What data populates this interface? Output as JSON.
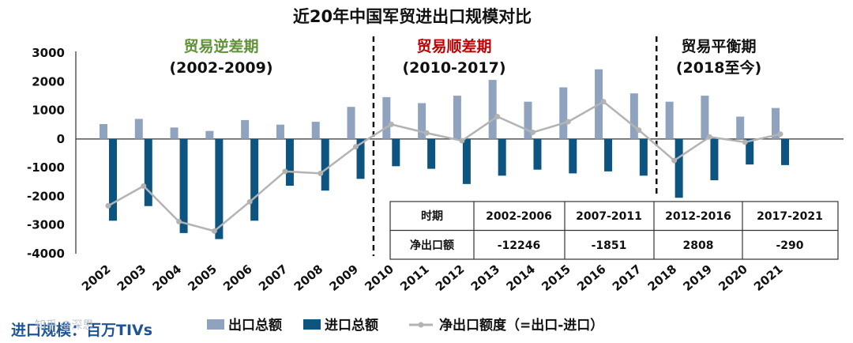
{
  "chart_data": {
    "type": "bar",
    "title": "近20年中国军贸进出口规模对比",
    "categories": [
      "2002",
      "2003",
      "2004",
      "2005",
      "2006",
      "2007",
      "2008",
      "2009",
      "2010",
      "2011",
      "2012",
      "2013",
      "2014",
      "2015",
      "2016",
      "2017",
      "2018",
      "2019",
      "2020",
      "2021"
    ],
    "ylim": [
      -4000,
      3000
    ],
    "yticks": [
      3000,
      2000,
      1000,
      0,
      -1000,
      -2000,
      -3000,
      -4000
    ],
    "series": [
      {
        "name": "出口总额",
        "type": "bar",
        "color": "#8fa2be",
        "values": [
          520,
          700,
          400,
          280,
          660,
          500,
          600,
          1120,
          1460,
          1250,
          1510,
          2060,
          1300,
          1800,
          2430,
          1590,
          1300,
          1510,
          780,
          1080
        ]
      },
      {
        "name": "进口总额",
        "type": "bar",
        "color": "#0d5580",
        "values": [
          -2850,
          -2340,
          -3280,
          -3490,
          -2850,
          -1630,
          -1800,
          -1390,
          -950,
          -1040,
          -1570,
          -1280,
          -1070,
          -1200,
          -1130,
          -1280,
          -2050,
          -1440,
          -890,
          -910
        ]
      },
      {
        "name": "净出口额度（=出口-进口）",
        "type": "line",
        "color": "#b3b3b3",
        "values": [
          -2330,
          -1640,
          -2880,
          -3210,
          -2190,
          -1130,
          -1200,
          -270,
          510,
          210,
          -60,
          780,
          230,
          600,
          1300,
          310,
          -750,
          70,
          -110,
          170
        ]
      }
    ],
    "periods": [
      {
        "label": "贸易逆差期",
        "range": "(2002-2009)",
        "color": "#5f9135"
      },
      {
        "label": "贸易顺差期",
        "range": "(2010-2017)",
        "color": "#c00000"
      },
      {
        "label": "贸易平衡期",
        "range": "(2018至今)",
        "color": "#111111"
      }
    ],
    "table": {
      "headers": [
        "时期",
        "2002-2006",
        "2007-2011",
        "2012-2016",
        "2017-2021"
      ],
      "row_label": "净出口额",
      "values": [
        "-12246",
        "-1851",
        "2808",
        "-290"
      ],
      "value_colors": [
        "#5f9135",
        "#5f9135",
        "#c00000",
        "#5f9135"
      ]
    },
    "legend": [
      "出口总额",
      "进口总额",
      "净出口额度（=出口-进口）"
    ],
    "unit_label": "进口规模：百万TIVs",
    "watermark": "知乎 @深思"
  }
}
